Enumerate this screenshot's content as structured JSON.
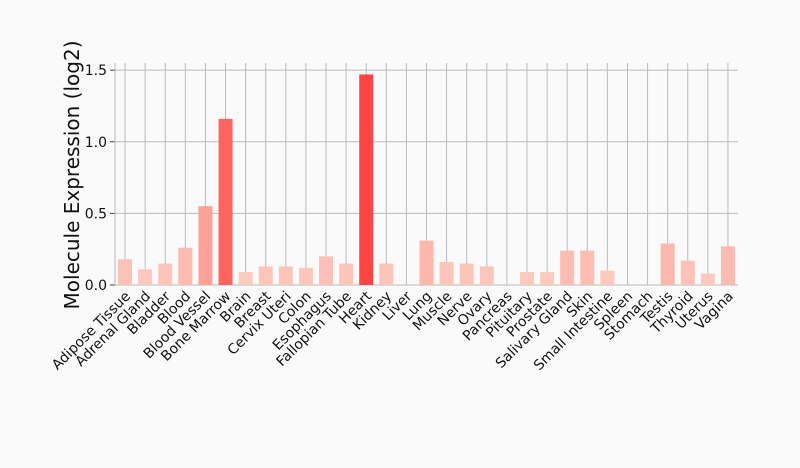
{
  "chart_data": {
    "type": "bar",
    "ylabel": "Molecule Expression (log2)",
    "xlabel": "",
    "ylim": [
      0,
      1.5
    ],
    "grid": true,
    "yticks": [
      "0.0",
      "0.5",
      "1.0",
      "1.5"
    ],
    "categories": [
      "Adipose Tissue",
      "Adrenal Gland",
      "Bladder",
      "Blood",
      "Blood Vessel",
      "Bone Marrow",
      "Brain",
      "Breast",
      "Cervix Uteri",
      "Colon",
      "Esophagus",
      "Fallopian Tube",
      "Heart",
      "Kidney",
      "Liver",
      "Lung",
      "Muscle",
      "Nerve",
      "Ovary",
      "Pancreas",
      "Pituitary",
      "Prostate",
      "Salivary Gland",
      "Skin",
      "Small Intestine",
      "Spleen",
      "Stomach",
      "Testis",
      "Thyroid",
      "Uterus",
      "Vagina"
    ],
    "values": [
      0.18,
      0.11,
      0.15,
      0.26,
      0.55,
      1.16,
      0.09,
      0.13,
      0.13,
      0.12,
      0.2,
      0.15,
      1.47,
      0.15,
      0.0,
      0.31,
      0.16,
      0.15,
      0.13,
      0.0,
      0.09,
      0.09,
      0.24,
      0.24,
      0.1,
      0.0,
      0.0,
      0.29,
      0.17,
      0.08,
      0.27
    ],
    "color_scale": {
      "low": "#fdd0c4",
      "high": "#ff4444"
    }
  }
}
